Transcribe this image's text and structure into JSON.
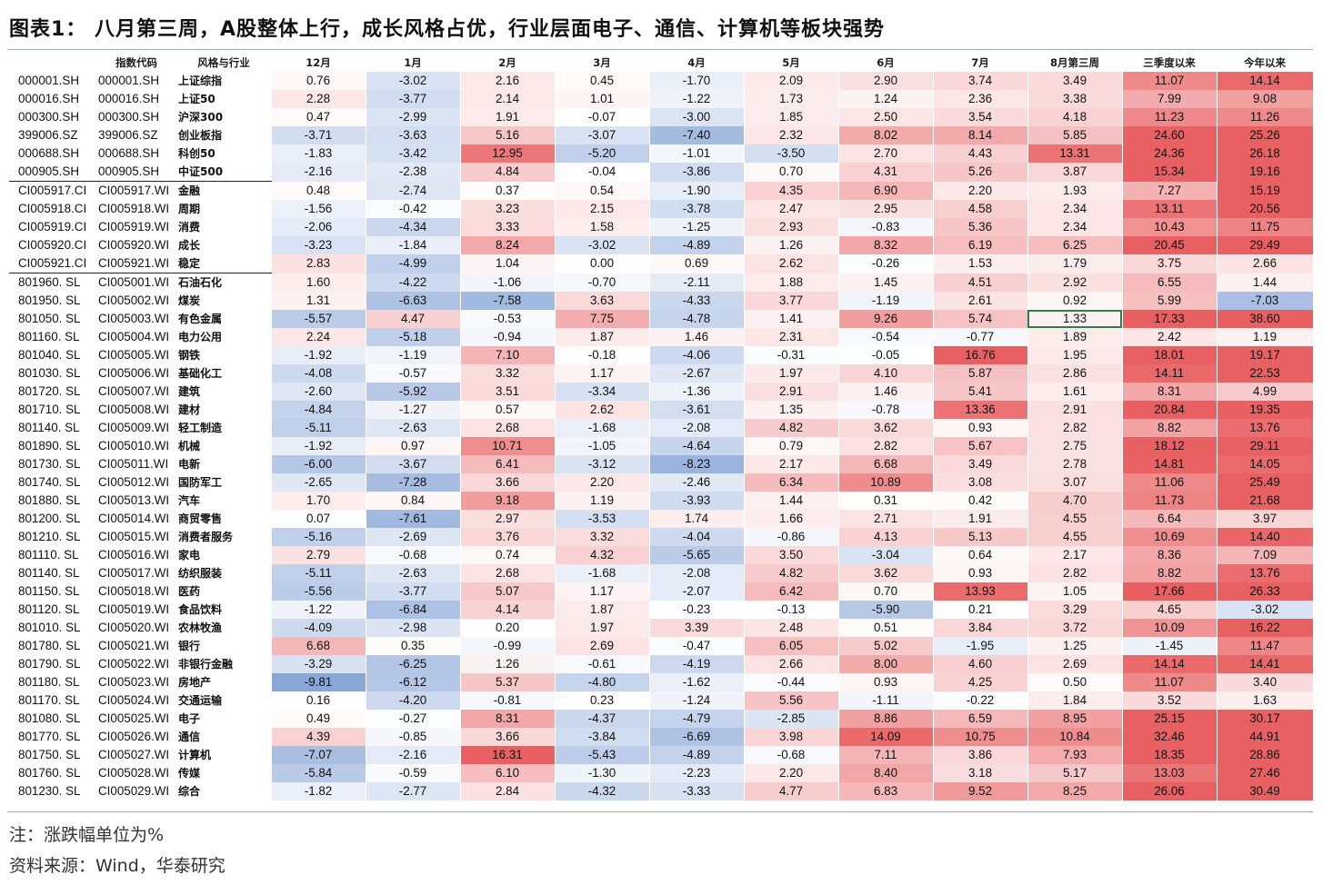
{
  "title": "图表1： 八月第三周，A股整体上行，成长风格占优，行业层面电子、通信、计算机等板块强势",
  "headers": [
    "",
    "指数代码",
    "风格与行业",
    "12月",
    "1月",
    "2月",
    "3月",
    "4月",
    "5月",
    "6月",
    "7月",
    "8月第三周",
    "三季度以来",
    "今年以来"
  ],
  "colors": {
    "positive": "#e8585a",
    "negative": "#3f6fbf",
    "selected_border": "#2e7d4a"
  },
  "selected_cell": {
    "row": 13,
    "col": 8
  },
  "group_end_rows": [
    5,
    10
  ],
  "rows": [
    {
      "code1": "000001.SH",
      "code2": "000001.SH",
      "name": "上证综指",
      "values": [
        "0.76",
        "-3.02",
        "2.16",
        "0.45",
        "-1.70",
        "2.09",
        "2.90",
        "3.74",
        "3.49",
        "11.07",
        "14.14"
      ]
    },
    {
      "code1": "000016.SH",
      "code2": "000016.SH",
      "name": "上证50",
      "values": [
        "2.28",
        "-3.77",
        "2.14",
        "1.01",
        "-1.22",
        "1.73",
        "1.24",
        "2.36",
        "3.38",
        "7.99",
        "9.08"
      ]
    },
    {
      "code1": "000300.SH",
      "code2": "000300.SH",
      "name": "沪深300",
      "values": [
        "0.47",
        "-2.99",
        "1.91",
        "-0.07",
        "-3.00",
        "1.85",
        "2.50",
        "3.54",
        "4.18",
        "11.23",
        "11.26"
      ]
    },
    {
      "code1": "399006.SZ",
      "code2": "399006.SZ",
      "name": "创业板指",
      "values": [
        "-3.71",
        "-3.63",
        "5.16",
        "-3.07",
        "-7.40",
        "2.32",
        "8.02",
        "8.14",
        "5.85",
        "24.60",
        "25.26"
      ]
    },
    {
      "code1": "000688.SH",
      "code2": "000688.SH",
      "name": "科创50",
      "values": [
        "-1.83",
        "-3.42",
        "12.95",
        "-5.20",
        "-1.01",
        "-3.50",
        "2.70",
        "4.43",
        "13.31",
        "24.36",
        "26.18"
      ]
    },
    {
      "code1": "000905.SH",
      "code2": "000905.SH",
      "name": "中证500",
      "values": [
        "-2.16",
        "-2.38",
        "4.84",
        "-0.04",
        "-3.86",
        "0.70",
        "4.31",
        "5.26",
        "3.87",
        "15.34",
        "19.16"
      ]
    },
    {
      "code1": "CI005917.CI",
      "code2": "CI005917.WI",
      "name": "金融",
      "values": [
        "0.48",
        "-2.74",
        "0.37",
        "0.54",
        "-1.90",
        "4.35",
        "6.90",
        "2.20",
        "1.93",
        "7.27",
        "15.19"
      ]
    },
    {
      "code1": "CI005918.CI",
      "code2": "CI005918.WI",
      "name": "周期",
      "values": [
        "-1.56",
        "-0.42",
        "3.23",
        "2.15",
        "-3.78",
        "2.47",
        "2.95",
        "4.58",
        "2.34",
        "13.11",
        "20.56"
      ]
    },
    {
      "code1": "CI005919.CI",
      "code2": "CI005919.WI",
      "name": "消费",
      "values": [
        "-2.06",
        "-4.34",
        "3.33",
        "1.58",
        "-1.25",
        "2.93",
        "-0.83",
        "5.36",
        "2.34",
        "10.43",
        "11.75"
      ]
    },
    {
      "code1": "CI005920.CI",
      "code2": "CI005920.WI",
      "name": "成长",
      "values": [
        "-3.23",
        "-1.84",
        "8.24",
        "-3.02",
        "-4.89",
        "1.26",
        "8.32",
        "6.19",
        "6.25",
        "20.45",
        "29.49"
      ]
    },
    {
      "code1": "CI005921.CI",
      "code2": "CI005921.WI",
      "name": "稳定",
      "values": [
        "2.83",
        "-4.99",
        "1.04",
        "0.00",
        "0.69",
        "2.62",
        "-0.26",
        "1.53",
        "1.79",
        "3.75",
        "2.66"
      ]
    },
    {
      "code1": "801960. SL",
      "code2": "CI005001.WI",
      "name": "石油石化",
      "values": [
        "1.60",
        "-4.22",
        "-1.06",
        "-0.70",
        "-2.11",
        "1.88",
        "1.45",
        "4.51",
        "2.92",
        "6.55",
        "1.44"
      ]
    },
    {
      "code1": "801950. SL",
      "code2": "CI005002.WI",
      "name": "煤炭",
      "values": [
        "1.31",
        "-6.63",
        "-7.58",
        "3.63",
        "-4.33",
        "3.77",
        "-1.19",
        "2.61",
        "0.92",
        "5.99",
        "-7.03"
      ]
    },
    {
      "code1": "801050. SL",
      "code2": "CI005003.WI",
      "name": "有色金属",
      "values": [
        "-5.57",
        "4.47",
        "-0.53",
        "7.75",
        "-4.78",
        "1.41",
        "9.26",
        "5.74",
        "1.33",
        "17.33",
        "38.60"
      ]
    },
    {
      "code1": "801160. SL",
      "code2": "CI005004.WI",
      "name": "电力公用",
      "values": [
        "2.24",
        "-5.18",
        "-0.94",
        "1.87",
        "1.46",
        "2.31",
        "-0.54",
        "-0.77",
        "1.89",
        "2.42",
        "1.19"
      ]
    },
    {
      "code1": "801040. SL",
      "code2": "CI005005.WI",
      "name": "钢铁",
      "values": [
        "-1.92",
        "-1.19",
        "7.10",
        "-0.18",
        "-4.06",
        "-0.31",
        "-0.05",
        "16.76",
        "1.95",
        "18.01",
        "19.17"
      ]
    },
    {
      "code1": "801030. SL",
      "code2": "CI005006.WI",
      "name": "基础化工",
      "values": [
        "-4.08",
        "-0.57",
        "3.32",
        "1.17",
        "-2.67",
        "1.97",
        "4.10",
        "5.87",
        "2.86",
        "14.11",
        "22.53"
      ]
    },
    {
      "code1": "801720. SL",
      "code2": "CI005007.WI",
      "name": "建筑",
      "values": [
        "-2.60",
        "-5.92",
        "3.51",
        "-3.34",
        "-1.36",
        "2.91",
        "1.46",
        "5.41",
        "1.61",
        "8.31",
        "4.99"
      ]
    },
    {
      "code1": "801710. SL",
      "code2": "CI005008.WI",
      "name": "建材",
      "values": [
        "-4.84",
        "-1.27",
        "0.57",
        "2.62",
        "-3.61",
        "1.35",
        "-0.78",
        "13.36",
        "2.91",
        "20.84",
        "19.35"
      ]
    },
    {
      "code1": "801140. SL",
      "code2": "CI005009.WI",
      "name": "轻工制造",
      "values": [
        "-5.11",
        "-2.63",
        "2.68",
        "-1.68",
        "-2.08",
        "4.82",
        "3.62",
        "0.93",
        "2.82",
        "8.82",
        "13.76"
      ]
    },
    {
      "code1": "801890. SL",
      "code2": "CI005010.WI",
      "name": "机械",
      "values": [
        "-1.92",
        "0.97",
        "10.71",
        "-1.05",
        "-4.64",
        "0.79",
        "2.82",
        "5.67",
        "2.75",
        "18.12",
        "29.11"
      ]
    },
    {
      "code1": "801730. SL",
      "code2": "CI005011.WI",
      "name": "电新",
      "values": [
        "-6.00",
        "-3.67",
        "6.41",
        "-3.12",
        "-8.23",
        "2.17",
        "6.68",
        "3.49",
        "2.78",
        "14.81",
        "14.05"
      ]
    },
    {
      "code1": "801740. SL",
      "code2": "CI005012.WI",
      "name": "国防军工",
      "values": [
        "-2.65",
        "-7.28",
        "3.66",
        "2.20",
        "-2.46",
        "6.34",
        "10.89",
        "3.08",
        "3.07",
        "11.06",
        "25.49"
      ]
    },
    {
      "code1": "801880. SL",
      "code2": "CI005013.WI",
      "name": "汽车",
      "values": [
        "1.70",
        "0.84",
        "9.18",
        "1.19",
        "-3.93",
        "1.44",
        "0.31",
        "0.42",
        "4.70",
        "11.73",
        "21.68"
      ]
    },
    {
      "code1": "801200. SL",
      "code2": "CI005014.WI",
      "name": "商贸零售",
      "values": [
        "0.07",
        "-7.61",
        "2.97",
        "-3.53",
        "1.74",
        "1.66",
        "2.71",
        "1.91",
        "4.55",
        "6.64",
        "3.97"
      ]
    },
    {
      "code1": "801210. SL",
      "code2": "CI005015.WI",
      "name": "消费者服务",
      "values": [
        "-5.16",
        "-2.69",
        "3.76",
        "3.32",
        "-4.04",
        "-0.86",
        "4.13",
        "5.13",
        "4.55",
        "10.69",
        "14.40"
      ]
    },
    {
      "code1": "801110. SL",
      "code2": "CI005016.WI",
      "name": "家电",
      "values": [
        "2.79",
        "-0.68",
        "0.74",
        "4.32",
        "-5.65",
        "3.50",
        "-3.04",
        "0.64",
        "2.17",
        "8.36",
        "7.09"
      ]
    },
    {
      "code1": "801140. SL",
      "code2": "CI005017.WI",
      "name": "纺织服装",
      "values": [
        "-5.11",
        "-2.63",
        "2.68",
        "-1.68",
        "-2.08",
        "4.82",
        "3.62",
        "0.93",
        "2.82",
        "8.82",
        "13.76"
      ]
    },
    {
      "code1": "801150. SL",
      "code2": "CI005018.WI",
      "name": "医药",
      "values": [
        "-5.56",
        "-3.77",
        "5.07",
        "1.17",
        "-2.07",
        "6.42",
        "0.70",
        "13.93",
        "1.05",
        "17.66",
        "26.33"
      ]
    },
    {
      "code1": "801120. SL",
      "code2": "CI005019.WI",
      "name": "食品饮料",
      "values": [
        "-1.22",
        "-6.84",
        "4.14",
        "1.87",
        "-0.23",
        "-0.13",
        "-5.90",
        "0.21",
        "3.29",
        "4.65",
        "-3.02"
      ]
    },
    {
      "code1": "801010. SL",
      "code2": "CI005020.WI",
      "name": "农林牧渔",
      "values": [
        "-4.09",
        "-2.98",
        "0.20",
        "1.97",
        "3.39",
        "2.48",
        "0.51",
        "3.84",
        "3.72",
        "10.09",
        "16.22"
      ]
    },
    {
      "code1": "801780. SL",
      "code2": "CI005021.WI",
      "name": "银行",
      "values": [
        "6.68",
        "0.35",
        "-0.99",
        "2.69",
        "-0.47",
        "6.05",
        "5.02",
        "-1.95",
        "1.25",
        "-1.45",
        "11.47"
      ]
    },
    {
      "code1": "801790. SL",
      "code2": "CI005022.WI",
      "name": "非银行金融",
      "values": [
        "-3.29",
        "-6.25",
        "1.26",
        "-0.61",
        "-4.19",
        "2.66",
        "8.00",
        "4.60",
        "2.69",
        "14.14",
        "14.41"
      ]
    },
    {
      "code1": "801180. SL",
      "code2": "CI005023.WI",
      "name": "房地产",
      "values": [
        "-9.81",
        "-6.12",
        "5.37",
        "-4.80",
        "-1.62",
        "-0.44",
        "0.93",
        "4.25",
        "0.50",
        "11.07",
        "3.40"
      ]
    },
    {
      "code1": "801170. SL",
      "code2": "CI005024.WI",
      "name": "交通运输",
      "values": [
        "0.16",
        "-4.20",
        "-0.81",
        "0.23",
        "-1.24",
        "5.56",
        "-1.11",
        "-0.22",
        "1.84",
        "3.52",
        "1.63"
      ]
    },
    {
      "code1": "801080. SL",
      "code2": "CI005025.WI",
      "name": "电子",
      "values": [
        "0.49",
        "-0.27",
        "8.31",
        "-4.37",
        "-4.79",
        "-2.85",
        "8.86",
        "6.59",
        "8.95",
        "25.15",
        "30.17"
      ]
    },
    {
      "code1": "801770. SL",
      "code2": "CI005026.WI",
      "name": "通信",
      "values": [
        "4.39",
        "-0.85",
        "3.66",
        "-3.84",
        "-6.69",
        "3.98",
        "14.09",
        "10.75",
        "10.84",
        "32.46",
        "44.91"
      ]
    },
    {
      "code1": "801750. SL",
      "code2": "CI005027.WI",
      "name": "计算机",
      "values": [
        "-7.07",
        "-2.16",
        "16.31",
        "-5.43",
        "-4.89",
        "-0.68",
        "7.11",
        "3.86",
        "7.93",
        "18.35",
        "28.86"
      ]
    },
    {
      "code1": "801760. SL",
      "code2": "CI005028.WI",
      "name": "传媒",
      "values": [
        "-5.84",
        "-0.59",
        "6.10",
        "-1.30",
        "-2.23",
        "2.20",
        "8.40",
        "3.18",
        "5.17",
        "13.03",
        "27.46"
      ]
    },
    {
      "code1": "801230. SL",
      "code2": "CI005029.WI",
      "name": "综合",
      "values": [
        "-1.82",
        "-2.77",
        "2.84",
        "-4.32",
        "-3.33",
        "4.77",
        "6.83",
        "9.52",
        "8.25",
        "26.06",
        "30.49"
      ]
    }
  ],
  "notes": {
    "unit": "注：涨跌幅单位为%",
    "source": "资料来源：Wind，华泰研究"
  }
}
